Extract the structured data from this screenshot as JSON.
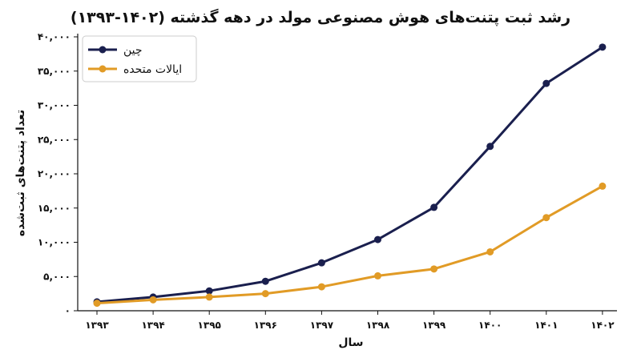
{
  "chart_data": {
    "type": "line",
    "title": "رشد ثبت پتنت‌های هوش مصنوعی مولد در دهه گذشته (۱۴۰۲-۱۳۹۳)",
    "xlabel": "سال",
    "ylabel": "تعداد پتنت‌های ثبت‌شده",
    "x": [
      "۱۳۹۳",
      "۱۳۹۴",
      "۱۳۹۵",
      "۱۳۹۶",
      "۱۳۹۷",
      "۱۳۹۸",
      "۱۳۹۹",
      "۱۴۰۰",
      "۱۴۰۱",
      "۱۴۰۲"
    ],
    "ylim": [
      0,
      40000
    ],
    "yticks": [
      0,
      5000,
      10000,
      15000,
      20000,
      25000,
      30000,
      35000,
      40000
    ],
    "ytick_labels": [
      "۰",
      "۵,۰۰۰",
      "۱۰,۰۰۰",
      "۱۵,۰۰۰",
      "۲۰,۰۰۰",
      "۲۵,۰۰۰",
      "۳۰,۰۰۰",
      "۳۵,۰۰۰",
      "۴۰,۰۰۰"
    ],
    "series": [
      {
        "name": "چین",
        "color": "#1a1f4e",
        "values": [
          1300,
          2000,
          2900,
          4300,
          7000,
          10400,
          15100,
          24000,
          33200,
          38500
        ]
      },
      {
        "name": "ایالات متحده",
        "color": "#e19b26",
        "values": [
          1100,
          1600,
          2000,
          2500,
          3500,
          5100,
          6100,
          8600,
          13600,
          18200
        ]
      }
    ],
    "legend": "top-left",
    "grid": false
  }
}
